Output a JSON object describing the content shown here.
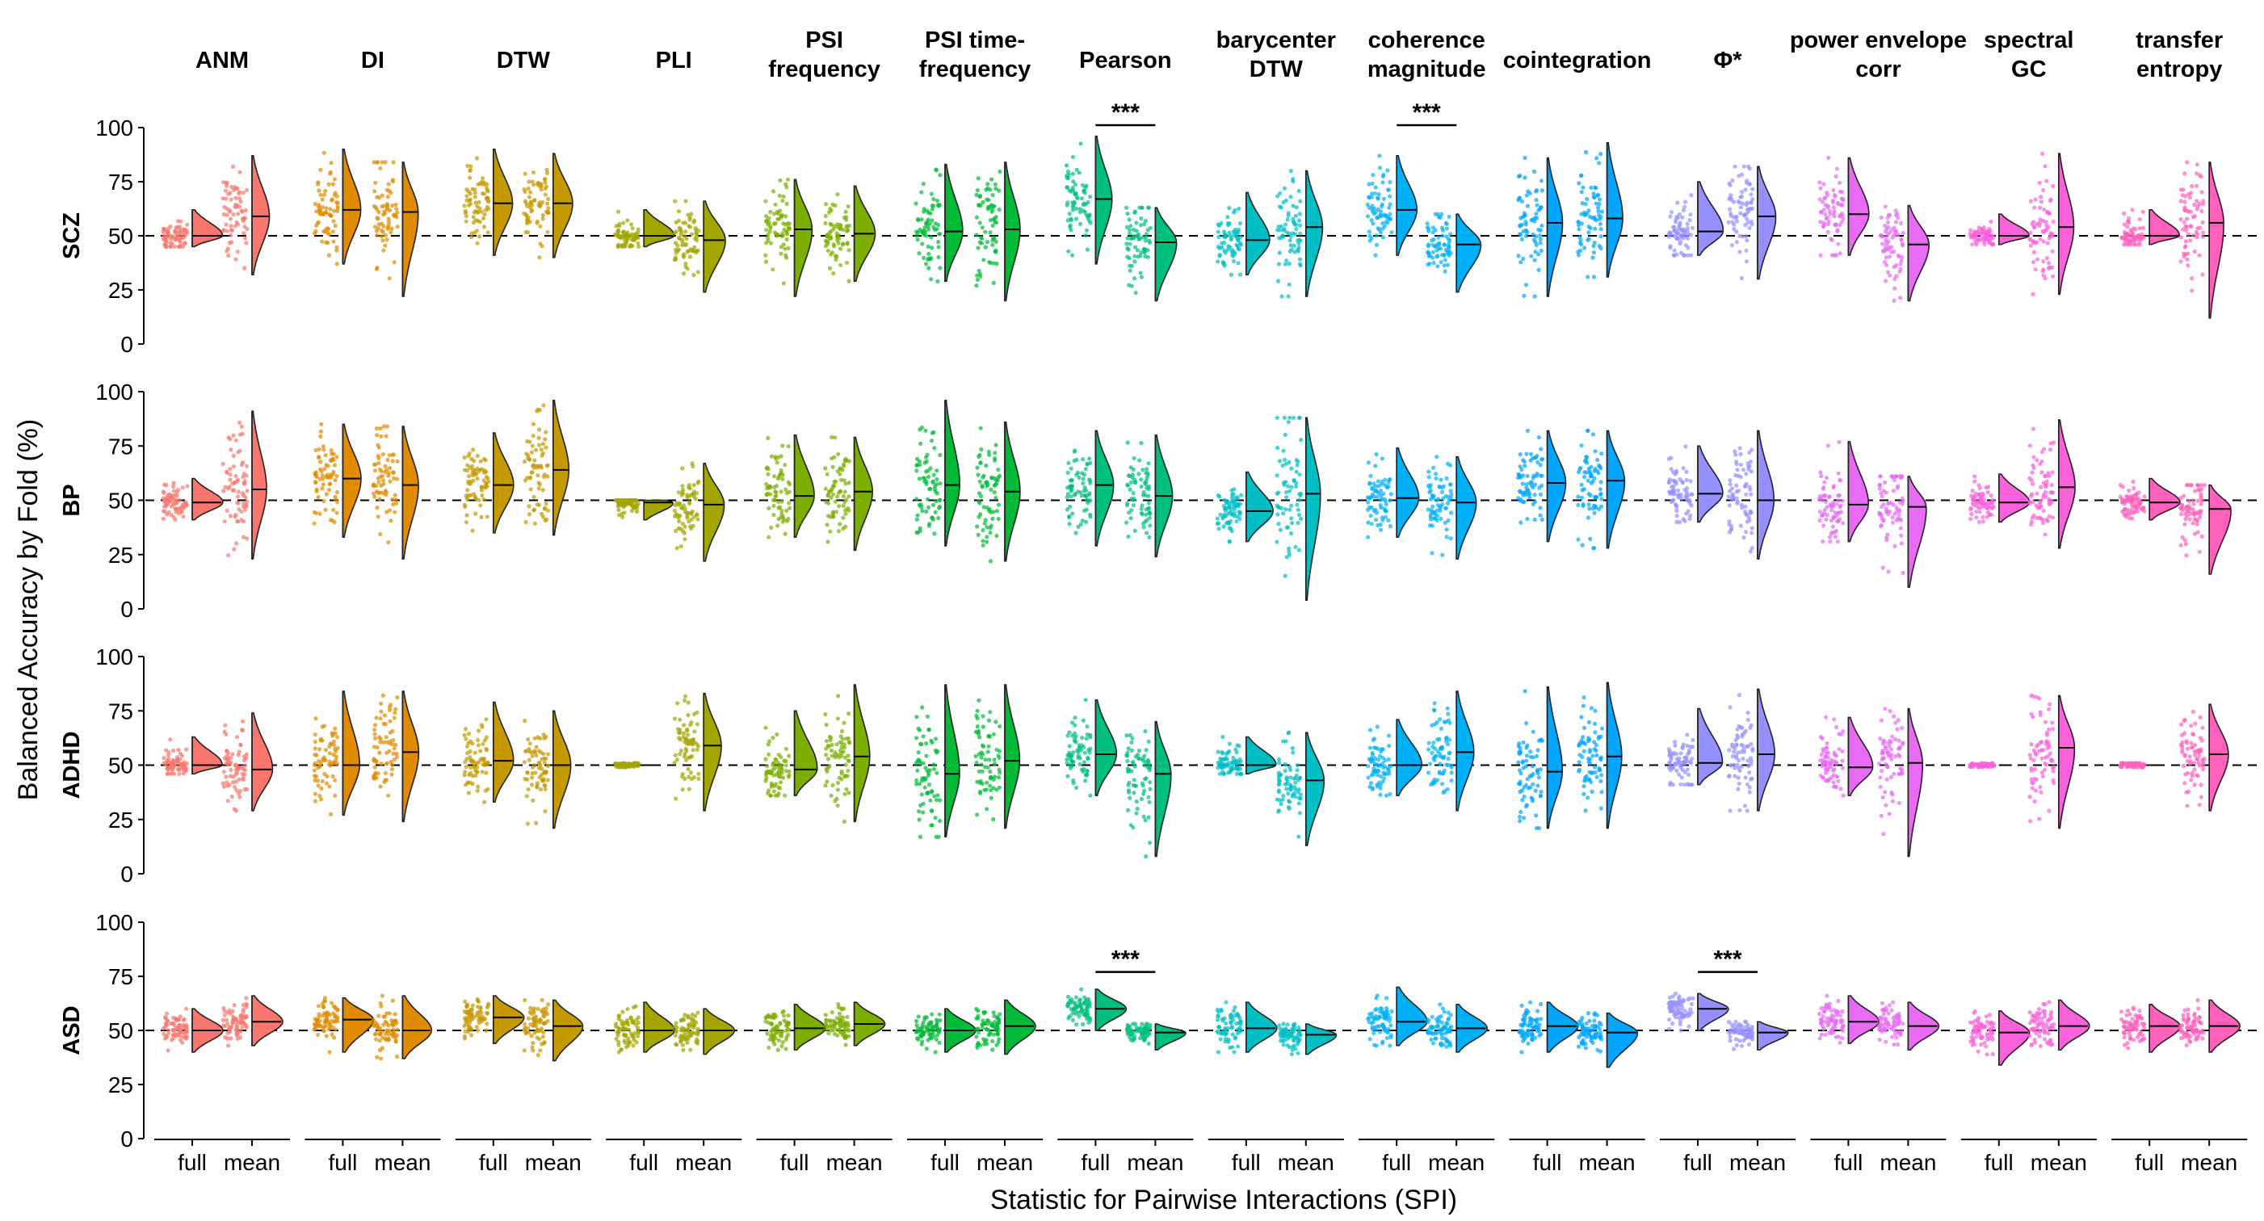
{
  "chart_data": {
    "type": "raincloud",
    "xlabel": "Statistic for Pairwise Interactions (SPI)",
    "ylabel": "Balanced Accuracy by Fold (%)",
    "ylim": [
      0,
      100
    ],
    "yticks": [
      0,
      25,
      50,
      75,
      100
    ],
    "chance_level": 50,
    "x_categories": [
      "full",
      "mean"
    ],
    "facet_rows": [
      "SCZ",
      "BP",
      "ADHD",
      "ASD"
    ],
    "facet_columns": [
      {
        "label": "ANM",
        "color": "#F8766D"
      },
      {
        "label": "DI",
        "color": "#E08B00"
      },
      {
        "label": "DTW",
        "color": "#C59900"
      },
      {
        "label": "PLI",
        "color": "#A3A500"
      },
      {
        "label": "PSI\nfrequency",
        "color": "#7CAE00"
      },
      {
        "label": "PSI time-\nfrequency",
        "color": "#00BA38"
      },
      {
        "label": "Pearson",
        "color": "#00BF7D"
      },
      {
        "label": "barycenter\nDTW",
        "color": "#00BFC4"
      },
      {
        "label": "coherence\nmagnitude",
        "color": "#00B0F6"
      },
      {
        "label": "cointegration",
        "color": "#00A5FF"
      },
      {
        "label": "Φ*",
        "color": "#9590FF"
      },
      {
        "label": "power envelope\ncorr",
        "color": "#E76BF3"
      },
      {
        "label": "spectral\nGC",
        "color": "#FA62DB"
      },
      {
        "label": "transfer\nentropy",
        "color": "#FF62BC"
      }
    ],
    "median": {
      "SCZ": {
        "full": [
          50,
          62,
          65,
          50,
          53,
          52,
          67,
          48,
          62,
          56,
          52,
          60,
          50,
          50
        ],
        "mean": [
          59,
          61,
          65,
          48,
          51,
          53,
          47,
          54,
          46,
          58,
          59,
          46,
          54,
          56
        ]
      },
      "BP": {
        "full": [
          49,
          60,
          57,
          49,
          52,
          57,
          57,
          45,
          51,
          58,
          53,
          48,
          49,
          49
        ],
        "mean": [
          55,
          57,
          64,
          48,
          54,
          54,
          52,
          53,
          49,
          59,
          50,
          47,
          56,
          46
        ]
      },
      "ADHD": {
        "full": [
          50,
          50,
          52,
          50,
          48,
          46,
          55,
          50,
          50,
          47,
          51,
          49,
          50,
          50
        ],
        "mean": [
          48,
          56,
          50,
          59,
          54,
          52,
          46,
          43,
          56,
          54,
          55,
          51,
          58,
          55
        ]
      },
      "ASD": {
        "full": [
          50,
          55,
          56,
          50,
          51,
          50,
          60,
          51,
          54,
          52,
          60,
          54,
          49,
          52
        ],
        "mean": [
          54,
          50,
          52,
          50,
          53,
          52,
          49,
          48,
          51,
          49,
          49,
          52,
          52,
          52
        ]
      }
    },
    "range": {
      "SCZ": {
        "full": [
          [
            45,
            62
          ],
          [
            37,
            90
          ],
          [
            41,
            90
          ],
          [
            45,
            62
          ],
          [
            22,
            76
          ],
          [
            29,
            83
          ],
          [
            37,
            96
          ],
          [
            32,
            70
          ],
          [
            41,
            87
          ],
          [
            22,
            86
          ],
          [
            41,
            75
          ],
          [
            41,
            86
          ],
          [
            46,
            60
          ],
          [
            46,
            62
          ]
        ],
        "mean": [
          [
            32,
            87
          ],
          [
            22,
            84
          ],
          [
            40,
            88
          ],
          [
            24,
            66
          ],
          [
            29,
            73
          ],
          [
            20,
            84
          ],
          [
            20,
            63
          ],
          [
            22,
            80
          ],
          [
            24,
            60
          ],
          [
            31,
            93
          ],
          [
            30,
            82
          ],
          [
            20,
            64
          ],
          [
            23,
            88
          ],
          [
            12,
            84
          ]
        ]
      },
      "BP": {
        "full": [
          [
            41,
            60
          ],
          [
            33,
            85
          ],
          [
            35,
            81
          ],
          [
            41,
            50
          ],
          [
            33,
            80
          ],
          [
            29,
            96
          ],
          [
            29,
            82
          ],
          [
            31,
            63
          ],
          [
            33,
            74
          ],
          [
            31,
            82
          ],
          [
            40,
            75
          ],
          [
            31,
            77
          ],
          [
            40,
            62
          ],
          [
            41,
            60
          ]
        ],
        "mean": [
          [
            23,
            91
          ],
          [
            23,
            84
          ],
          [
            34,
            96
          ],
          [
            22,
            67
          ],
          [
            27,
            79
          ],
          [
            22,
            86
          ],
          [
            24,
            80
          ],
          [
            4,
            88
          ],
          [
            23,
            70
          ],
          [
            28,
            82
          ],
          [
            23,
            82
          ],
          [
            10,
            61
          ],
          [
            28,
            87
          ],
          [
            16,
            57
          ]
        ]
      },
      "ADHD": {
        "full": [
          [
            46,
            63
          ],
          [
            27,
            84
          ],
          [
            33,
            79
          ],
          [
            50,
            50
          ],
          [
            36,
            75
          ],
          [
            17,
            87
          ],
          [
            36,
            80
          ],
          [
            46,
            63
          ],
          [
            36,
            71
          ],
          [
            21,
            86
          ],
          [
            41,
            76
          ],
          [
            36,
            72
          ],
          [
            50,
            50
          ],
          [
            50,
            50
          ]
        ],
        "mean": [
          [
            29,
            74
          ],
          [
            24,
            84
          ],
          [
            21,
            75
          ],
          [
            29,
            83
          ],
          [
            24,
            87
          ],
          [
            21,
            87
          ],
          [
            8,
            70
          ],
          [
            13,
            65
          ],
          [
            29,
            84
          ],
          [
            21,
            88
          ],
          [
            29,
            85
          ],
          [
            8,
            76
          ],
          [
            21,
            82
          ],
          [
            29,
            78
          ]
        ]
      },
      "ASD": {
        "full": [
          [
            40,
            60
          ],
          [
            40,
            65
          ],
          [
            44,
            66
          ],
          [
            40,
            63
          ],
          [
            41,
            62
          ],
          [
            40,
            60
          ],
          [
            50,
            69
          ],
          [
            40,
            63
          ],
          [
            43,
            70
          ],
          [
            40,
            63
          ],
          [
            50,
            67
          ],
          [
            44,
            66
          ],
          [
            34,
            59
          ],
          [
            40,
            62
          ]
        ],
        "mean": [
          [
            43,
            66
          ],
          [
            37,
            66
          ],
          [
            36,
            64
          ],
          [
            39,
            60
          ],
          [
            43,
            63
          ],
          [
            39,
            64
          ],
          [
            41,
            53
          ],
          [
            39,
            53
          ],
          [
            40,
            62
          ],
          [
            33,
            58
          ],
          [
            41,
            54
          ],
          [
            41,
            63
          ],
          [
            41,
            64
          ],
          [
            40,
            64
          ]
        ]
      }
    },
    "significance": [
      {
        "row": "SCZ",
        "column": "Pearson",
        "label": "***"
      },
      {
        "row": "SCZ",
        "column": "coherence\nmagnitude",
        "label": "***"
      },
      {
        "row": "ASD",
        "column": "Pearson",
        "label": "***"
      },
      {
        "row": "ASD",
        "column": "Φ*",
        "label": "***"
      }
    ]
  }
}
